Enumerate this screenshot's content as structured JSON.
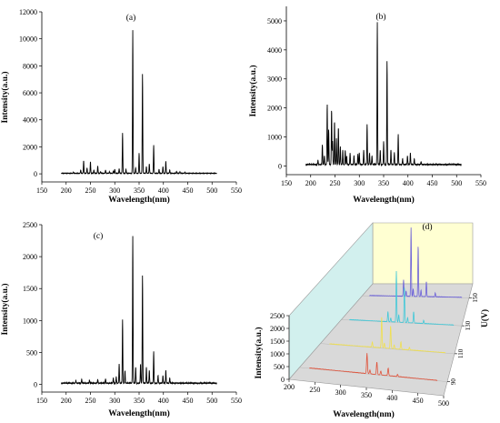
{
  "chart_data": [
    {
      "type": "line",
      "panel_label": "(a)",
      "xlabel": "Wavelength(nm)",
      "ylabel": "Intensity(a.u.)",
      "xlim": [
        150,
        550
      ],
      "ylim": [
        -600,
        12000
      ],
      "x_ticks": [
        150,
        200,
        250,
        300,
        350,
        400,
        450,
        500,
        550
      ],
      "y_ticks": [
        0,
        2000,
        4000,
        6000,
        8000,
        10000,
        12000
      ],
      "x_tick_labels": [
        "150",
        "200",
        "250",
        "300",
        "350",
        "400",
        "450",
        "500",
        "550"
      ],
      "y_tick_labels": [
        "0",
        "2000",
        "4000",
        "6000",
        "8000",
        "10000",
        "12000"
      ],
      "range": [
        190,
        510
      ],
      "baseline": 40,
      "series": [
        {
          "x": [
            215,
            230,
            236,
            243,
            250,
            257,
            265,
            271,
            281,
            289,
            297,
            300,
            309,
            316,
            323,
            337,
            343,
            350,
            357,
            365,
            371,
            380,
            391,
            399,
            405,
            413,
            427,
            434,
            444
          ],
          "values": [
            80,
            250,
            950,
            400,
            850,
            250,
            550,
            120,
            250,
            120,
            180,
            300,
            350,
            3000,
            300,
            10600,
            400,
            1500,
            7400,
            500,
            700,
            2100,
            300,
            500,
            900,
            250,
            150,
            120,
            100
          ]
        }
      ],
      "color": "#000000"
    },
    {
      "type": "line",
      "panel_label": "(b)",
      "xlabel": "Wavelength(nm)",
      "ylabel": "Intensity(a.u.)",
      "xlim": [
        150,
        550
      ],
      "ylim": [
        -300,
        5500
      ],
      "x_ticks": [
        150,
        200,
        250,
        300,
        350,
        400,
        450,
        500,
        550
      ],
      "y_ticks": [
        0,
        1000,
        2000,
        3000,
        4000,
        5000
      ],
      "x_tick_labels": [
        "150",
        "200",
        "250",
        "300",
        "350",
        "400",
        "450",
        "500",
        "550"
      ],
      "y_tick_labels": [
        "0",
        "1000",
        "2000",
        "3000",
        "4000",
        "5000"
      ],
      "range": [
        190,
        510
      ],
      "baseline": 50,
      "series": [
        {
          "x": [
            215,
            224,
            228,
            234,
            237,
            243,
            245,
            249,
            253,
            257,
            261,
            266,
            271,
            274,
            281,
            289,
            297,
            300,
            309,
            316,
            321,
            326,
            337,
            343,
            350,
            357,
            365,
            372,
            380,
            389,
            399,
            405,
            413,
            427
          ],
          "values": [
            150,
            700,
            300,
            2100,
            1200,
            1900,
            800,
            1500,
            900,
            1300,
            600,
            500,
            500,
            300,
            400,
            300,
            350,
            400,
            500,
            1400,
            400,
            300,
            4900,
            500,
            800,
            3600,
            500,
            400,
            1050,
            200,
            300,
            400,
            200,
            100
          ]
        }
      ],
      "color": "#000000"
    },
    {
      "type": "line",
      "panel_label": "(c)",
      "xlabel": "Wavelength(nm)",
      "ylabel": "Intensity(a.u.)",
      "xlim": [
        150,
        550
      ],
      "ylim": [
        -120,
        2500
      ],
      "x_ticks": [
        150,
        200,
        250,
        300,
        350,
        400,
        450,
        500,
        550
      ],
      "y_ticks": [
        0,
        500,
        1000,
        1500,
        2000,
        2500
      ],
      "x_tick_labels": [
        "150",
        "200",
        "250",
        "300",
        "350",
        "400",
        "450",
        "500",
        "550"
      ],
      "y_tick_labels": [
        "0",
        "500",
        "1000",
        "1500",
        "2000",
        "2500"
      ],
      "range": [
        190,
        510
      ],
      "baseline": 20,
      "series": [
        {
          "x": [
            220,
            232,
            248,
            265,
            281,
            297,
            303,
            309,
            316,
            321,
            337,
            343,
            353,
            357,
            365,
            371,
            380,
            389,
            399,
            405,
            413
          ],
          "values": [
            40,
            60,
            50,
            60,
            70,
            80,
            100,
            300,
            1000,
            200,
            2300,
            250,
            300,
            1700,
            250,
            200,
            500,
            120,
            120,
            200,
            80
          ]
        }
      ],
      "color": "#000000"
    },
    {
      "type": "line",
      "panel_label": "(d)",
      "xlabel": "Wavelength(nm)",
      "ylabel": "Intensity(a.u.)",
      "zlabel": "U(V)",
      "xlim": [
        200,
        500
      ],
      "ylim": [
        0,
        2500
      ],
      "x_ticks": [
        200,
        250,
        300,
        350,
        400,
        450,
        500
      ],
      "y_ticks": [
        0,
        500,
        1000,
        1500,
        2000,
        2500
      ],
      "z_ticks": [
        90,
        110,
        130,
        150
      ],
      "x_tick_labels": [
        "200",
        "250",
        "300",
        "350",
        "400",
        "450",
        "500"
      ],
      "y_tick_labels": [
        "0",
        "500",
        "1000",
        "1500",
        "2000",
        "2500"
      ],
      "z_tick_labels": [
        "90",
        "110",
        "130",
        "150"
      ],
      "back_wall_color": "#ffffd2",
      "side_wall_color": "#d2f0ee",
      "floor_color": "#d9d9d9",
      "series": [
        {
          "z": 90,
          "color": "#e0533b",
          "x": [
            337,
            343,
            357,
            365,
            380,
            399
          ],
          "values": [
            800,
            150,
            500,
            150,
            300,
            80
          ]
        },
        {
          "z": 110,
          "color": "#f0e050",
          "x": [
            316,
            337,
            343,
            357,
            365,
            380,
            399
          ],
          "values": [
            200,
            1200,
            200,
            900,
            150,
            300,
            100
          ]
        },
        {
          "z": 130,
          "color": "#40c8d8",
          "x": [
            316,
            323,
            337,
            343,
            357,
            365,
            380,
            405
          ],
          "values": [
            400,
            150,
            2000,
            300,
            1400,
            200,
            450,
            120
          ]
        },
        {
          "z": 150,
          "color": "#6a5fd8",
          "x": [
            316,
            323,
            337,
            343,
            357,
            365,
            380,
            405
          ],
          "values": [
            650,
            200,
            2700,
            300,
            2000,
            250,
            600,
            150
          ]
        }
      ]
    }
  ]
}
